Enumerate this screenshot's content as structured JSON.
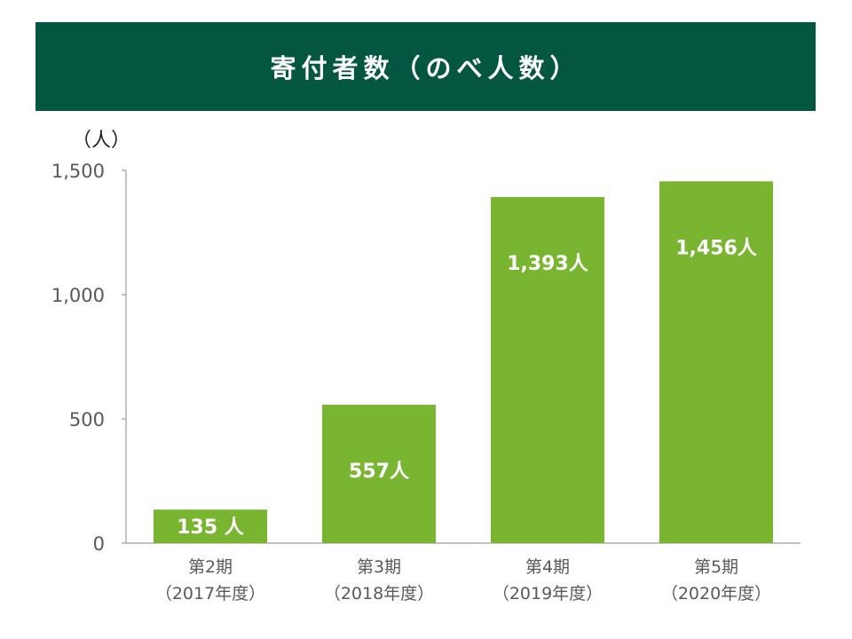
{
  "title": "寄付者数（のべ人数）",
  "chart_data": {
    "type": "bar",
    "title": "寄付者数（のべ人数）",
    "ylabel": "（人）",
    "xlabel": "",
    "ylim": [
      0,
      1500
    ],
    "yticks": [
      0,
      500,
      1000,
      1500
    ],
    "ytick_labels": [
      "0",
      "500",
      "1,000",
      "1,500"
    ],
    "categories": [
      [
        "第2期",
        "（2017年度）"
      ],
      [
        "第3期",
        "（2018年度）"
      ],
      [
        "第4期",
        "（2019年度）"
      ],
      [
        "第5期",
        "（2020年度）"
      ]
    ],
    "values": [
      135,
      557,
      1393,
      1456
    ],
    "data_labels": [
      "135 人",
      "557人",
      "1,393人",
      "1,456人"
    ],
    "bar_color": "#79b530",
    "grid": false,
    "legend": "none"
  },
  "colors": {
    "banner": "#03563f",
    "bar": "#79b530",
    "axis": "#888888",
    "tick_text": "#595959"
  }
}
